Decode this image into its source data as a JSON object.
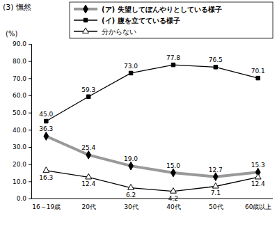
{
  "chart_data": {
    "type": "line",
    "title": "(3) 憮然",
    "ylabel": "(%)",
    "categories": [
      "16～19歳",
      "20代",
      "30代",
      "40代",
      "50代",
      "60歳以上"
    ],
    "series": [
      {
        "name": "(ア) 失望してぼんやりとしている様子",
        "color": "#999999",
        "marker": "diamond",
        "line_style": "thick",
        "values": [
          36.3,
          25.4,
          19.0,
          15.0,
          12.7,
          15.3
        ],
        "value_labels": [
          "36.3",
          "25.4",
          "19.0",
          "15.0",
          "12.7",
          "15.3"
        ]
      },
      {
        "name": "(イ) 腹を立てている様子",
        "color": "#000000",
        "marker": "square",
        "line_style": "solid",
        "values": [
          45.0,
          59.3,
          73.0,
          77.8,
          76.5,
          70.1
        ],
        "value_labels": [
          "45.0",
          "59.3",
          "73.0",
          "77.8",
          "76.5",
          "70.1"
        ]
      },
      {
        "name": "分からない",
        "color": "#000000",
        "marker": "triangle-open",
        "line_style": "solid",
        "values": [
          16.3,
          12.4,
          6.2,
          4.2,
          7.1,
          12.4
        ],
        "value_labels": [
          "16.3",
          "12.4",
          "6.2",
          "4.2",
          "7.1",
          "12.4"
        ]
      }
    ],
    "ylim": [
      0,
      90
    ],
    "yticks": [
      {
        "value": 0,
        "label": "0.0"
      },
      {
        "value": 10,
        "label": "10.0"
      },
      {
        "value": 20,
        "label": "20.0"
      },
      {
        "value": 30,
        "label": "30.0"
      },
      {
        "value": 40,
        "label": "40.0"
      },
      {
        "value": 50,
        "label": "50.0"
      },
      {
        "value": 60,
        "label": "60.0"
      },
      {
        "value": 70,
        "label": "70.0"
      },
      {
        "value": 80,
        "label": "80.0"
      },
      {
        "value": 90,
        "label": "90.0"
      }
    ],
    "grid": false,
    "legend": "top",
    "data_labels": true
  }
}
